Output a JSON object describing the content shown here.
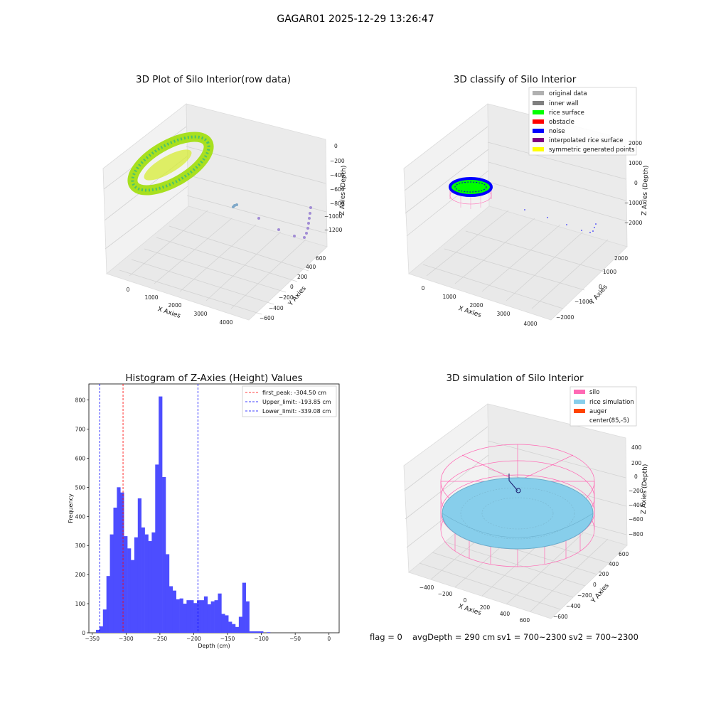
{
  "figure_title": "GAGAR01 2025-12-29 13:26:47",
  "footer": {
    "flag": "flag = 0",
    "avg_depth": "avgDepth = 290 cm",
    "sv1": "sv1 = 700~2300",
    "sv2": "sv2 = 700~2300"
  },
  "colors": {
    "histogram_bar": "#4d4dff",
    "first_peak_line": "#ff0000",
    "limit_lines": "#0000ff",
    "silo_wire": "#ff69b4",
    "rice_simulation": "#87ceeb",
    "auger": "#ff4500",
    "rice_surface": "#00ff00",
    "noise": "#0000ff",
    "interpolated": "#800080",
    "symmetric": "#ffff00",
    "inner_wall": "#808080",
    "original_data": "#b0b0b0"
  },
  "chart_data": [
    {
      "type": "scatter",
      "title": "3D Plot of Silo Interior(row data)",
      "xlabel": "X Axies",
      "ylabel": "Y Axies",
      "zlabel": "Z Axies (Depth)",
      "x_ticks": [
        "0",
        "1000",
        "2000",
        "3000",
        "4000"
      ],
      "y_ticks": [
        "−600",
        "−400",
        "−200",
        "0",
        "200",
        "400",
        "600"
      ],
      "z_ticks": [
        "0",
        "−200",
        "−400",
        "−600",
        "−800",
        "−1000",
        "−1200"
      ]
    },
    {
      "type": "scatter",
      "title": "3D classify of Silo Interior",
      "xlabel": "X Axies",
      "ylabel": "Y Axies",
      "zlabel": "Z Axies (Depth)",
      "x_ticks": [
        "0",
        "1000",
        "2000",
        "3000",
        "4000"
      ],
      "y_ticks": [
        "−2000",
        "−1000",
        "0",
        "1000",
        "2000"
      ],
      "z_ticks": [
        "2000",
        "1000",
        "0",
        "−1000",
        "−2000"
      ],
      "legend": [
        {
          "label": "original data",
          "color": "#b0b0b0"
        },
        {
          "label": "inner wall",
          "color": "#808080"
        },
        {
          "label": "rice surface",
          "color": "#00ff00"
        },
        {
          "label": "obstacle",
          "color": "#ff0000"
        },
        {
          "label": "noise",
          "color": "#0000ff"
        },
        {
          "label": "interpolated rice surface",
          "color": "#800080"
        },
        {
          "label": "symmetric generated points",
          "color": "#ffff00"
        }
      ],
      "legend_position": "top-right"
    },
    {
      "type": "bar",
      "title": "Histogram of Z-Axies (Height) Values",
      "xlabel": "Depth (cm)",
      "ylabel": "Frequency",
      "xlim": [
        -355,
        15
      ],
      "ylim": [
        0,
        855
      ],
      "x_ticks": [
        -350,
        -300,
        -250,
        -200,
        -150,
        -100,
        -50,
        0
      ],
      "y_ticks": [
        0,
        100,
        200,
        300,
        400,
        500,
        600,
        700,
        800
      ],
      "bin_start": -344.5,
      "bin_width": 5.15,
      "values": [
        10,
        22,
        80,
        195,
        338,
        430,
        500,
        482,
        332,
        290,
        250,
        328,
        462,
        362,
        338,
        315,
        345,
        578,
        812,
        535,
        270,
        160,
        145,
        115,
        118,
        100,
        112,
        112,
        102,
        112,
        112,
        125,
        98,
        108,
        112,
        135,
        65,
        60,
        38,
        30,
        20,
        55,
        172,
        108,
        5,
        5,
        5,
        5,
        0,
        2
      ],
      "vlines": [
        {
          "label": "first_peak: -304.50 cm",
          "x": -304.5,
          "color": "#ff0000"
        },
        {
          "label": "Upper_limit: -193.85 cm",
          "x": -193.85,
          "color": "#0000ff"
        },
        {
          "label": "Lower_limit: -339.08 cm",
          "x": -339.08,
          "color": "#0000ff"
        }
      ],
      "legend_position": "top-right"
    },
    {
      "type": "scatter",
      "title": "3D simulation of Silo Interior",
      "xlabel": "X Axies",
      "ylabel": "Y Axies",
      "zlabel": "Z Axies (Depth)",
      "x_ticks": [
        "−400",
        "−200",
        "0",
        "200",
        "400",
        "600"
      ],
      "y_ticks": [
        "−600",
        "−400",
        "−200",
        "0",
        "200",
        "400",
        "600"
      ],
      "z_ticks": [
        "400",
        "200",
        "0",
        "−200",
        "−400",
        "−600",
        "−800"
      ],
      "legend": [
        {
          "label": "silo",
          "color": "#ff69b4"
        },
        {
          "label": "rice simulation",
          "color": "#87ceeb"
        },
        {
          "label": "auger",
          "color": "#ff4500"
        },
        {
          "label": "center(85,-5)",
          "color": ""
        }
      ],
      "legend_position": "top-right"
    }
  ]
}
